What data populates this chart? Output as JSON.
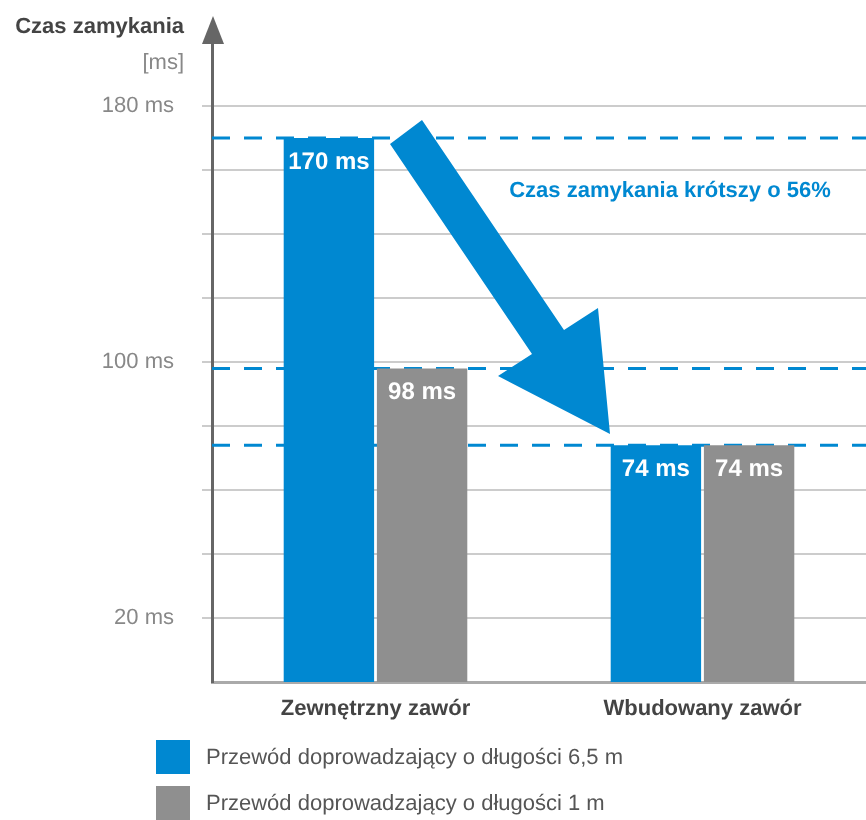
{
  "chart_data": {
    "type": "bar",
    "ylabel": "Czas zamykania\n[ms]",
    "categories": [
      "Zewnętrzny zawór",
      "Wbudowany zawór"
    ],
    "series": [
      {
        "name": "Przewód doprowadzający o długości 6,5 m",
        "color": "#0088d1",
        "values": [
          170,
          74
        ],
        "value_labels": [
          "170 ms",
          "74 ms"
        ]
      },
      {
        "name": "Przewód doprowadzający o długości 1 m",
        "color": "#8f8f8f",
        "values": [
          98,
          74
        ],
        "value_labels": [
          "98 ms",
          "74 ms"
        ]
      }
    ],
    "ylim": [
      0,
      200
    ],
    "yticks": [
      {
        "value": 20,
        "label": "20 ms"
      },
      {
        "value": 40,
        "label": null
      },
      {
        "value": 60,
        "label": null
      },
      {
        "value": 80,
        "label": null
      },
      {
        "value": 100,
        "label": "100 ms"
      },
      {
        "value": 120,
        "label": null
      },
      {
        "value": 140,
        "label": null
      },
      {
        "value": 160,
        "label": null
      },
      {
        "value": 180,
        "label": "180 ms"
      }
    ],
    "grid": "y",
    "legend": "bottom",
    "ref_lines": [
      {
        "axis": "y",
        "value": 170,
        "color": "#0088d1",
        "line_style": "dashed"
      },
      {
        "axis": "y",
        "value": 98,
        "color": "#0088d1",
        "line_style": "dashed"
      },
      {
        "axis": "y",
        "value": 74,
        "color": "#0088d1",
        "line_style": "dashed"
      }
    ],
    "annotations": [
      "Czas zamykania krótszy o 56%"
    ]
  }
}
